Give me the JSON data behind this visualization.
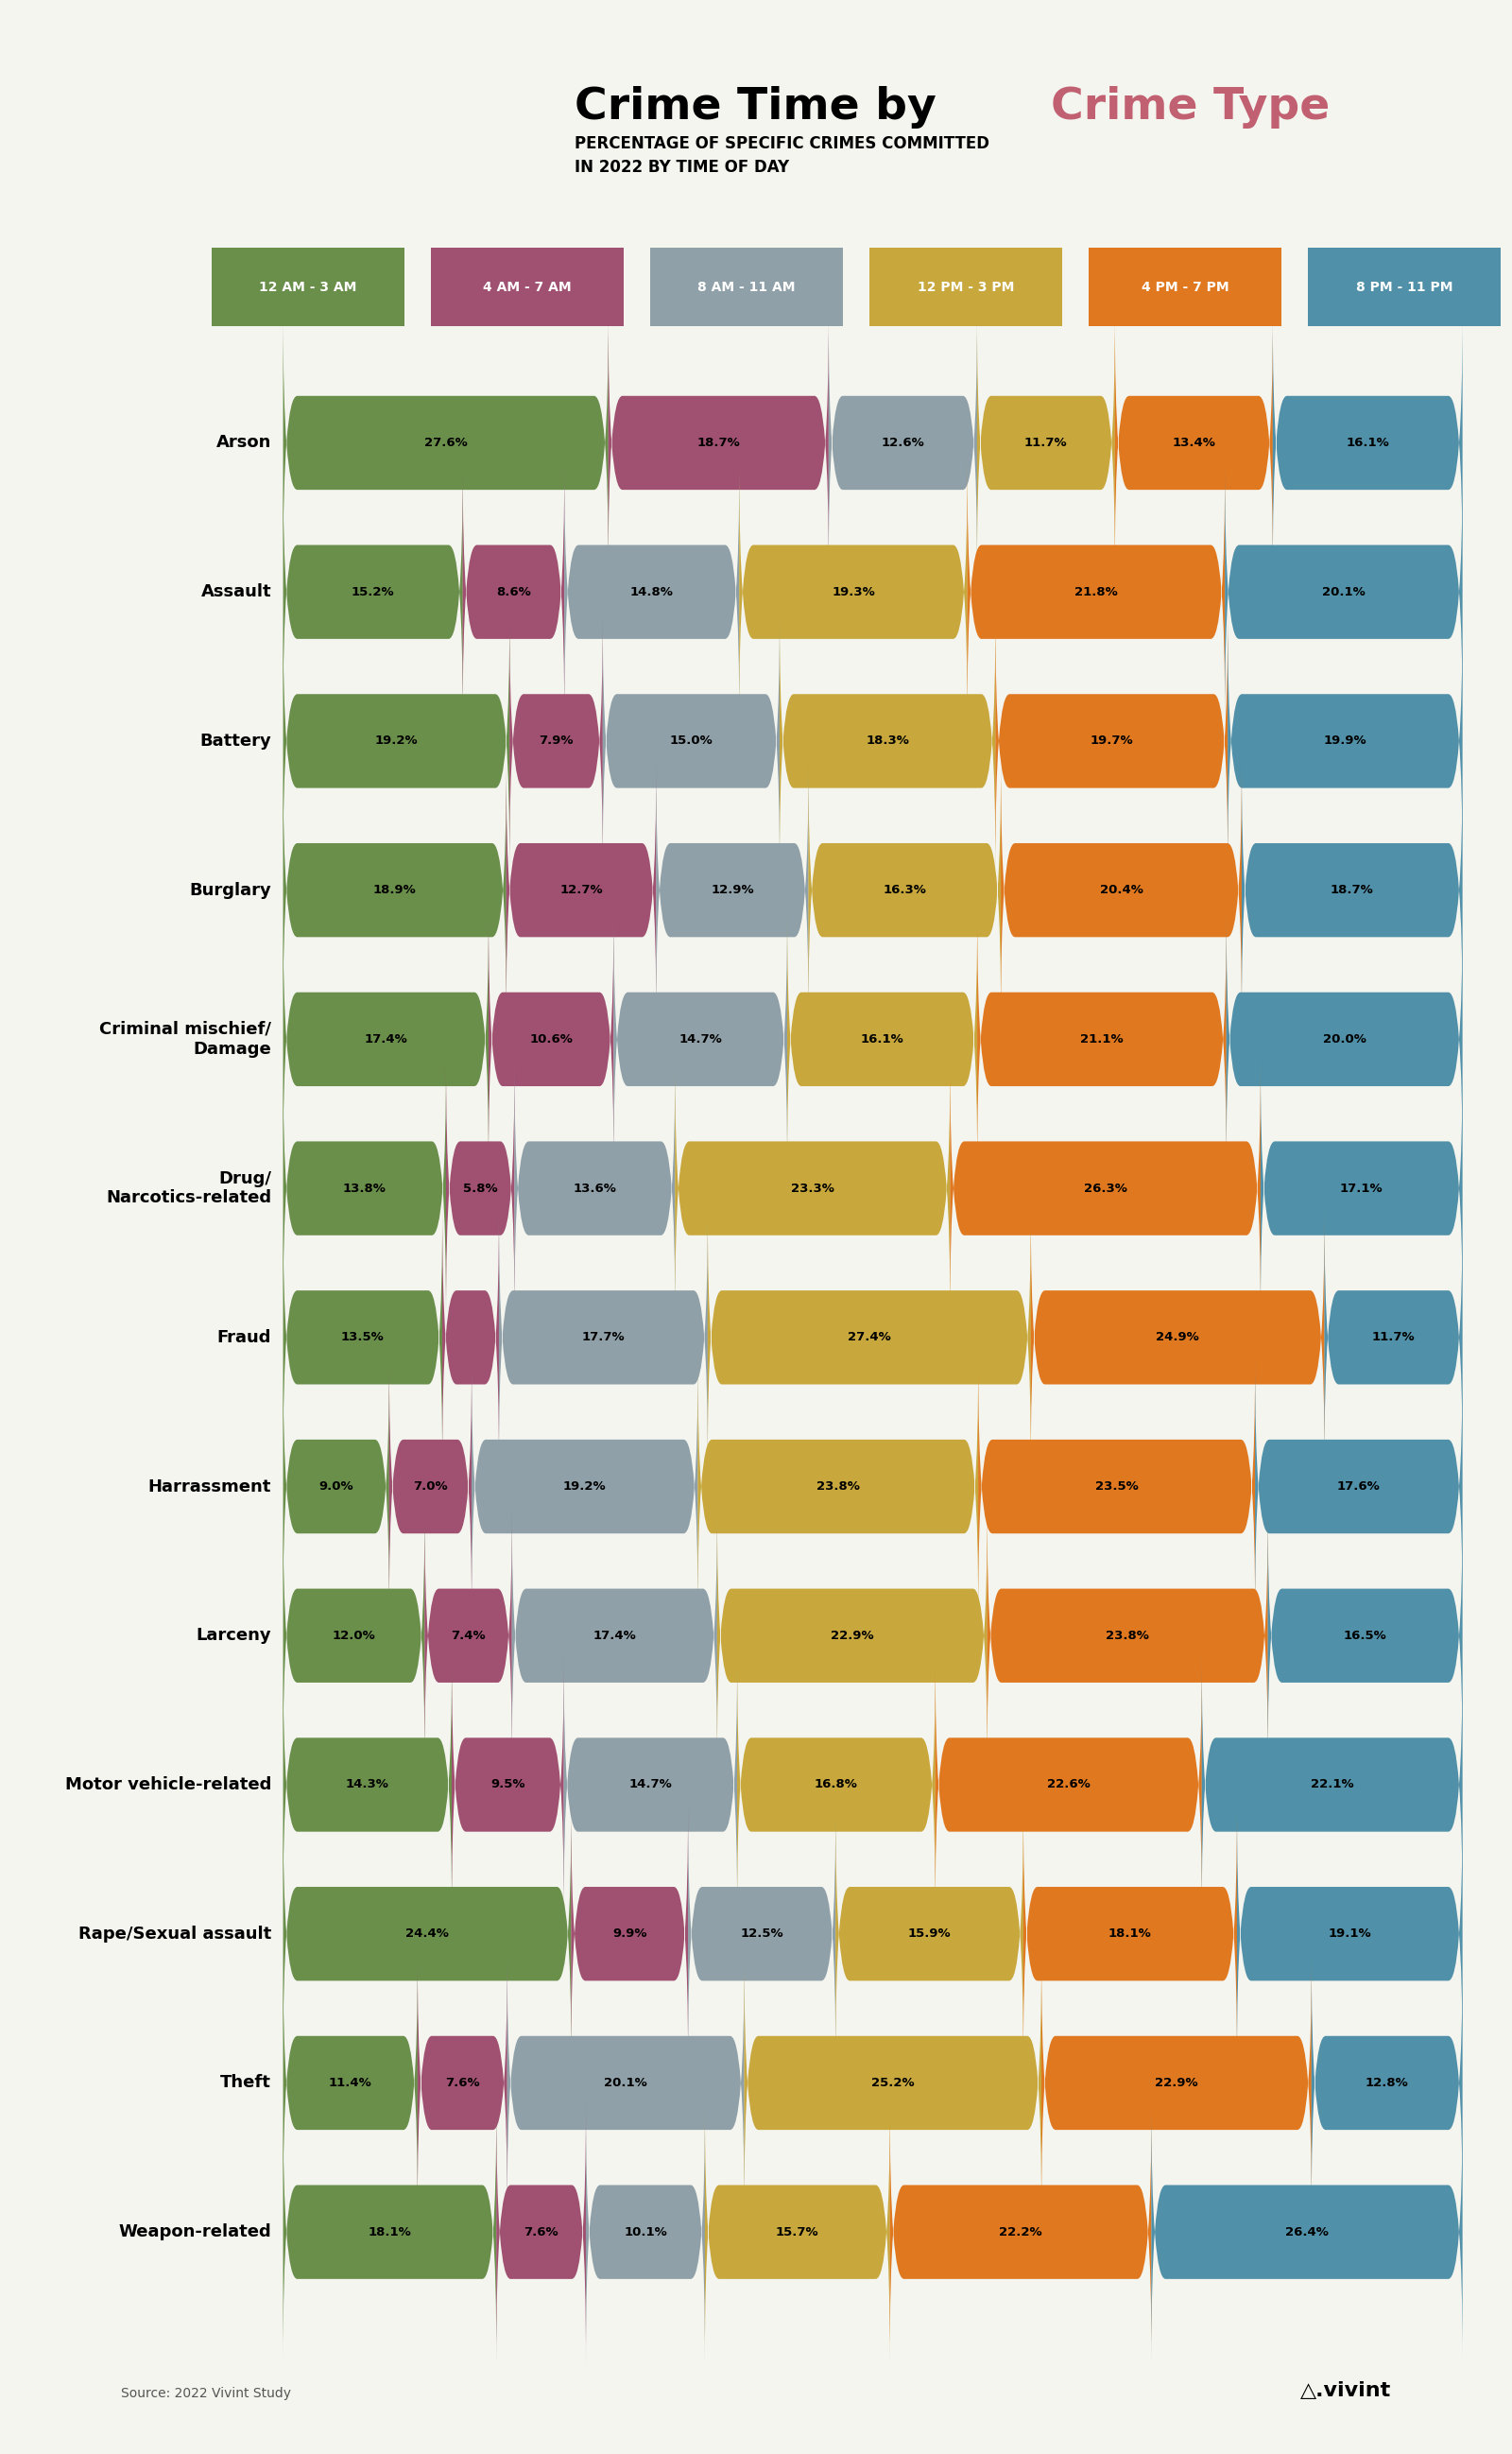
{
  "title1": "Crime Time by ",
  "title2": "Crime Type",
  "subtitle": "PERCENTAGE OF SPECIFIC CRIMES COMMITTED\nIN 2022 BY TIME OF DAY",
  "source": "Source: 2022 Vivint Study",
  "colors": [
    "#6a8f4b",
    "#a05070",
    "#8fa0a8",
    "#c8a83c",
    "#e07820",
    "#5090a8"
  ],
  "legend_labels": [
    "12 AM - 3 AM",
    "4 AM - 7 AM",
    "8 AM - 11 AM",
    "12 PM - 3 PM",
    "4 PM - 7 PM",
    "8 PM - 11 PM"
  ],
  "crimes": [
    "Arson",
    "Assault",
    "Battery",
    "Burglary",
    "Criminal mischief/\nDamage",
    "Drug/\nNarcotics-related",
    "Fraud",
    "Harrassment",
    "Larceny",
    "Motor vehicle-related",
    "Rape/Sexual assault",
    "Theft",
    "Weapon-related"
  ],
  "data": [
    [
      27.6,
      18.7,
      12.6,
      11.7,
      13.4,
      16.1
    ],
    [
      15.2,
      8.6,
      14.8,
      19.3,
      21.8,
      20.1
    ],
    [
      19.2,
      7.9,
      15.0,
      18.3,
      19.7,
      19.9
    ],
    [
      18.9,
      12.7,
      12.9,
      16.3,
      20.4,
      18.7
    ],
    [
      17.4,
      10.6,
      14.7,
      16.1,
      21.1,
      20.0
    ],
    [
      13.8,
      5.8,
      13.6,
      23.3,
      26.3,
      17.1
    ],
    [
      13.5,
      4.8,
      17.7,
      27.4,
      24.9,
      11.7
    ],
    [
      9.0,
      7.0,
      19.2,
      23.8,
      23.5,
      17.6
    ],
    [
      12.0,
      7.4,
      17.4,
      22.9,
      23.8,
      16.5
    ],
    [
      14.3,
      9.5,
      14.7,
      16.8,
      22.6,
      22.1
    ],
    [
      24.4,
      9.9,
      12.5,
      15.9,
      18.1,
      19.1
    ],
    [
      11.4,
      7.6,
      20.1,
      25.2,
      22.9,
      12.8
    ],
    [
      18.1,
      7.6,
      10.1,
      15.7,
      22.2,
      26.4
    ]
  ],
  "bg_color": "#f5f5f0",
  "bar_height": 0.62,
  "bar_gap": 1.0
}
